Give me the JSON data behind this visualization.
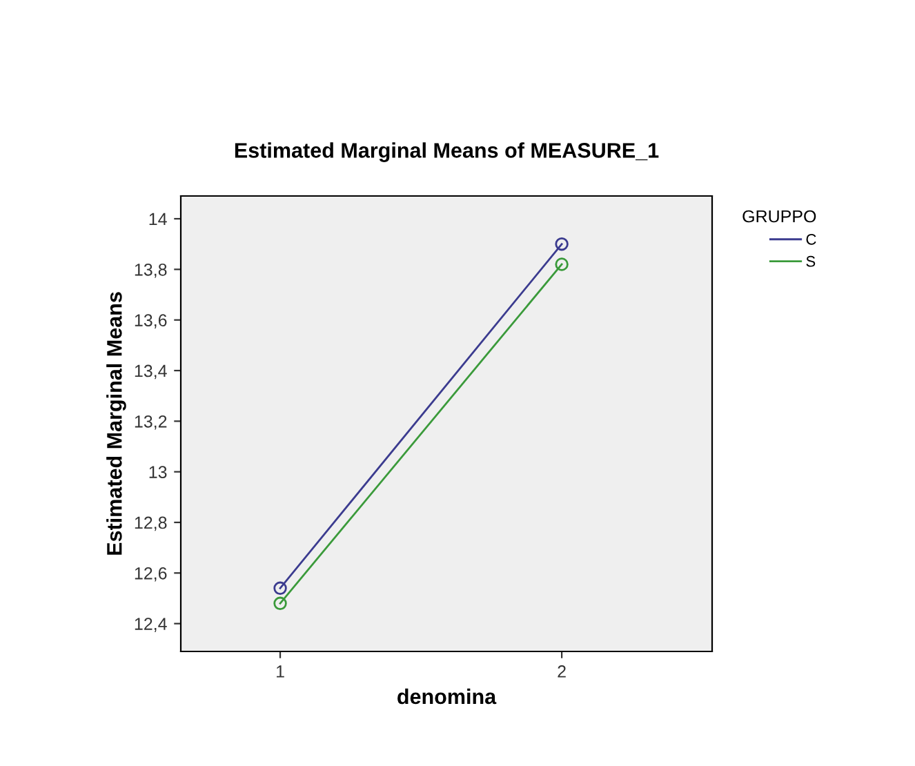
{
  "chart_data": {
    "type": "line",
    "title": "Estimated Marginal Means of MEASURE_1",
    "xlabel": "denomina",
    "ylabel": "Estimated Marginal Means",
    "legend_title": "GRUPPO",
    "categories": [
      "1",
      "2"
    ],
    "series": [
      {
        "name": "C",
        "color": "#3b3b8f",
        "values": [
          12.54,
          13.9
        ]
      },
      {
        "name": "S",
        "color": "#3a9a3a",
        "values": [
          12.48,
          13.82
        ]
      }
    ],
    "ylim": [
      12.29,
      14.09
    ],
    "yticks": [
      {
        "value": 12.4,
        "label": "12,4"
      },
      {
        "value": 12.6,
        "label": "12,6"
      },
      {
        "value": 12.8,
        "label": "12,8"
      },
      {
        "value": 13,
        "label": "13"
      },
      {
        "value": 13.2,
        "label": "13,2"
      },
      {
        "value": 13.4,
        "label": "13,4"
      },
      {
        "value": 13.6,
        "label": "13,6"
      },
      {
        "value": 13.8,
        "label": "13,8"
      },
      {
        "value": 14,
        "label": "14"
      }
    ],
    "grid": false,
    "legend": "top right",
    "marker": "circle",
    "line_style": "solid"
  }
}
